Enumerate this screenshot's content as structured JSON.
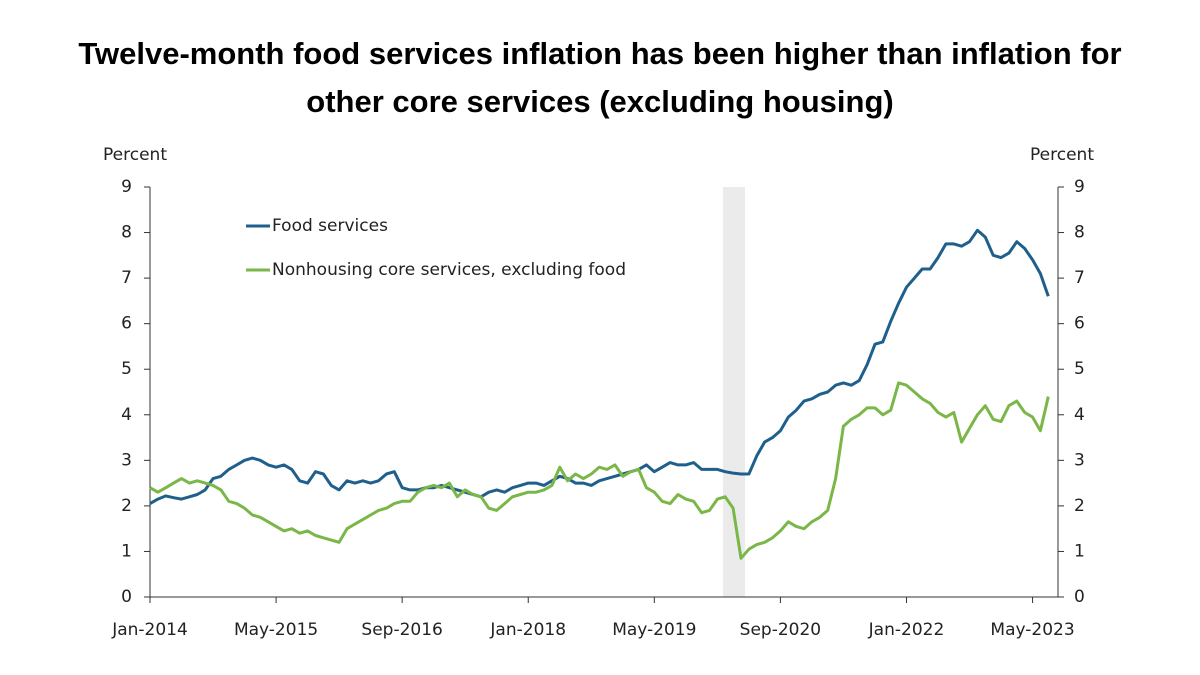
{
  "chart_data": {
    "type": "line",
    "title": "Twelve-month food services inflation has been higher than inflation for other core services (excluding housing)",
    "y_label": "Percent",
    "y2_label": "Percent",
    "categories": [
      "Jan-2014",
      null,
      null,
      null,
      null,
      null,
      null,
      null,
      null,
      null,
      null,
      null,
      null,
      null,
      null,
      null,
      "May-2015",
      null,
      null,
      null,
      null,
      null,
      null,
      null,
      null,
      null,
      null,
      null,
      null,
      null,
      null,
      null,
      "Sep-2016",
      null,
      null,
      null,
      null,
      null,
      null,
      null,
      null,
      null,
      null,
      null,
      null,
      null,
      null,
      null,
      "Jan-2018",
      null,
      null,
      null,
      null,
      null,
      null,
      null,
      null,
      null,
      null,
      null,
      null,
      null,
      null,
      null,
      "May-2019",
      null,
      null,
      null,
      null,
      null,
      null,
      null,
      null,
      null,
      null,
      null,
      null,
      null,
      null,
      null,
      "Sep-2020",
      null,
      null,
      null,
      null,
      null,
      null,
      null,
      null,
      null,
      null,
      null,
      null,
      null,
      null,
      null,
      "Jan-2022",
      null,
      null,
      null,
      null,
      null,
      null,
      null,
      null,
      null,
      null,
      null,
      null,
      null,
      null,
      null,
      "May-2023",
      null,
      null
    ],
    "series": [
      {
        "name": "Food services",
        "color": "#1f5f8b",
        "values": [
          2.05,
          2.15,
          2.22,
          2.18,
          2.15,
          2.2,
          2.25,
          2.35,
          2.6,
          2.65,
          2.8,
          2.9,
          3.0,
          3.05,
          3.0,
          2.9,
          2.85,
          2.9,
          2.8,
          2.55,
          2.5,
          2.75,
          2.7,
          2.45,
          2.35,
          2.55,
          2.5,
          2.55,
          2.5,
          2.55,
          2.7,
          2.75,
          2.4,
          2.35,
          2.35,
          2.4,
          2.4,
          2.45,
          2.4,
          2.35,
          2.3,
          2.25,
          2.2,
          2.3,
          2.35,
          2.3,
          2.4,
          2.45,
          2.5,
          2.5,
          2.45,
          2.55,
          2.65,
          2.6,
          2.5,
          2.5,
          2.45,
          2.55,
          2.6,
          2.65,
          2.7,
          2.75,
          2.8,
          2.9,
          2.75,
          2.85,
          2.95,
          2.9,
          2.9,
          2.95,
          2.8,
          2.8,
          2.8,
          2.75,
          2.72,
          2.7,
          2.7,
          3.1,
          3.4,
          3.5,
          3.65,
          3.95,
          4.1,
          4.3,
          4.35,
          4.45,
          4.5,
          4.65,
          4.7,
          4.65,
          4.75,
          5.1,
          5.55,
          5.6,
          6.05,
          6.45,
          6.8,
          7.0,
          7.2,
          7.2,
          7.45,
          7.75,
          7.75,
          7.7,
          7.8,
          8.05,
          7.9,
          7.5,
          7.45,
          7.55,
          7.8,
          7.65,
          7.4,
          7.1,
          6.6
        ]
      },
      {
        "name": "Nonhousing core services, excluding food",
        "color": "#7ab648",
        "values": [
          2.4,
          2.3,
          2.4,
          2.5,
          2.6,
          2.5,
          2.55,
          2.5,
          2.45,
          2.35,
          2.1,
          2.05,
          1.95,
          1.8,
          1.75,
          1.65,
          1.55,
          1.45,
          1.5,
          1.4,
          1.45,
          1.35,
          1.3,
          1.25,
          1.2,
          1.5,
          1.6,
          1.7,
          1.8,
          1.9,
          1.95,
          2.05,
          2.1,
          2.1,
          2.3,
          2.4,
          2.45,
          2.4,
          2.5,
          2.2,
          2.35,
          2.25,
          2.2,
          1.95,
          1.9,
          2.05,
          2.2,
          2.25,
          2.3,
          2.3,
          2.35,
          2.45,
          2.85,
          2.55,
          2.7,
          2.6,
          2.7,
          2.85,
          2.8,
          2.9,
          2.65,
          2.75,
          2.8,
          2.4,
          2.3,
          2.1,
          2.05,
          2.25,
          2.15,
          2.1,
          1.85,
          1.9,
          2.15,
          2.2,
          1.95,
          0.85,
          1.05,
          1.15,
          1.2,
          1.3,
          1.45,
          1.65,
          1.55,
          1.5,
          1.65,
          1.75,
          1.9,
          2.6,
          3.75,
          3.9,
          4.0,
          4.15,
          4.15,
          4.0,
          4.1,
          4.7,
          4.65,
          4.5,
          4.35,
          4.25,
          4.05,
          3.95,
          4.05,
          3.4,
          3.7,
          4.0,
          4.2,
          3.9,
          3.85,
          4.2,
          4.3,
          4.05,
          3.95,
          3.65,
          4.4
        ]
      }
    ],
    "ylim": [
      0,
      9
    ],
    "yticks": [
      0,
      1,
      2,
      3,
      4,
      5,
      6,
      7,
      8,
      9
    ],
    "y2lim": [
      0,
      9
    ],
    "y2ticks": [
      0,
      1,
      2,
      3,
      4,
      5,
      6,
      7,
      8,
      9
    ],
    "legend": "upper left",
    "grid": false
  }
}
